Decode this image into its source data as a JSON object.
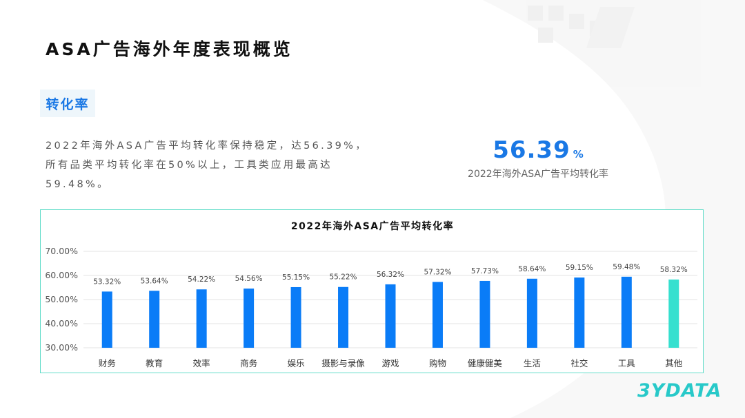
{
  "page": {
    "title": "ASA广告海外年度表现概览",
    "section_tag": "转化率",
    "description_lines": [
      "2022年海外ASA广告平均转化率保持稳定，达56.39%，",
      "所有品类平均转化率在50%以上，工具类应用最高达",
      "59.48%。"
    ],
    "kpi": {
      "value": "56.39",
      "unit": "%",
      "caption": "2022年海外ASA广告平均转化率"
    },
    "logo": "3YDATA"
  },
  "colors": {
    "accent_blue": "#0a7cf7",
    "highlight_teal": "#36e0cf",
    "border_teal": "#5fdcc8"
  },
  "chart_data": {
    "type": "bar",
    "title": "2022年海外ASA广告平均转化率",
    "categories": [
      "财务",
      "教育",
      "效率",
      "商务",
      "娱乐",
      "摄影与录像",
      "游戏",
      "购物",
      "健康健美",
      "生活",
      "社交",
      "工具",
      "其他"
    ],
    "values": [
      53.32,
      53.64,
      54.22,
      54.56,
      55.15,
      55.22,
      56.32,
      57.32,
      57.73,
      58.64,
      59.15,
      59.48,
      58.32
    ],
    "data_labels": [
      "53.32%",
      "53.64%",
      "54.22%",
      "54.56%",
      "55.15%",
      "55.22%",
      "56.32%",
      "57.32%",
      "57.73%",
      "58.64%",
      "59.15%",
      "59.48%",
      "58.32%"
    ],
    "highlight_category": "其他",
    "ylim": [
      30,
      70
    ],
    "yticks": [
      "30.00%",
      "40.00%",
      "50.00%",
      "60.00%",
      "70.00%"
    ],
    "ytick_values": [
      30,
      40,
      50,
      60,
      70
    ],
    "grid": true,
    "xlabel": "",
    "ylabel": ""
  }
}
